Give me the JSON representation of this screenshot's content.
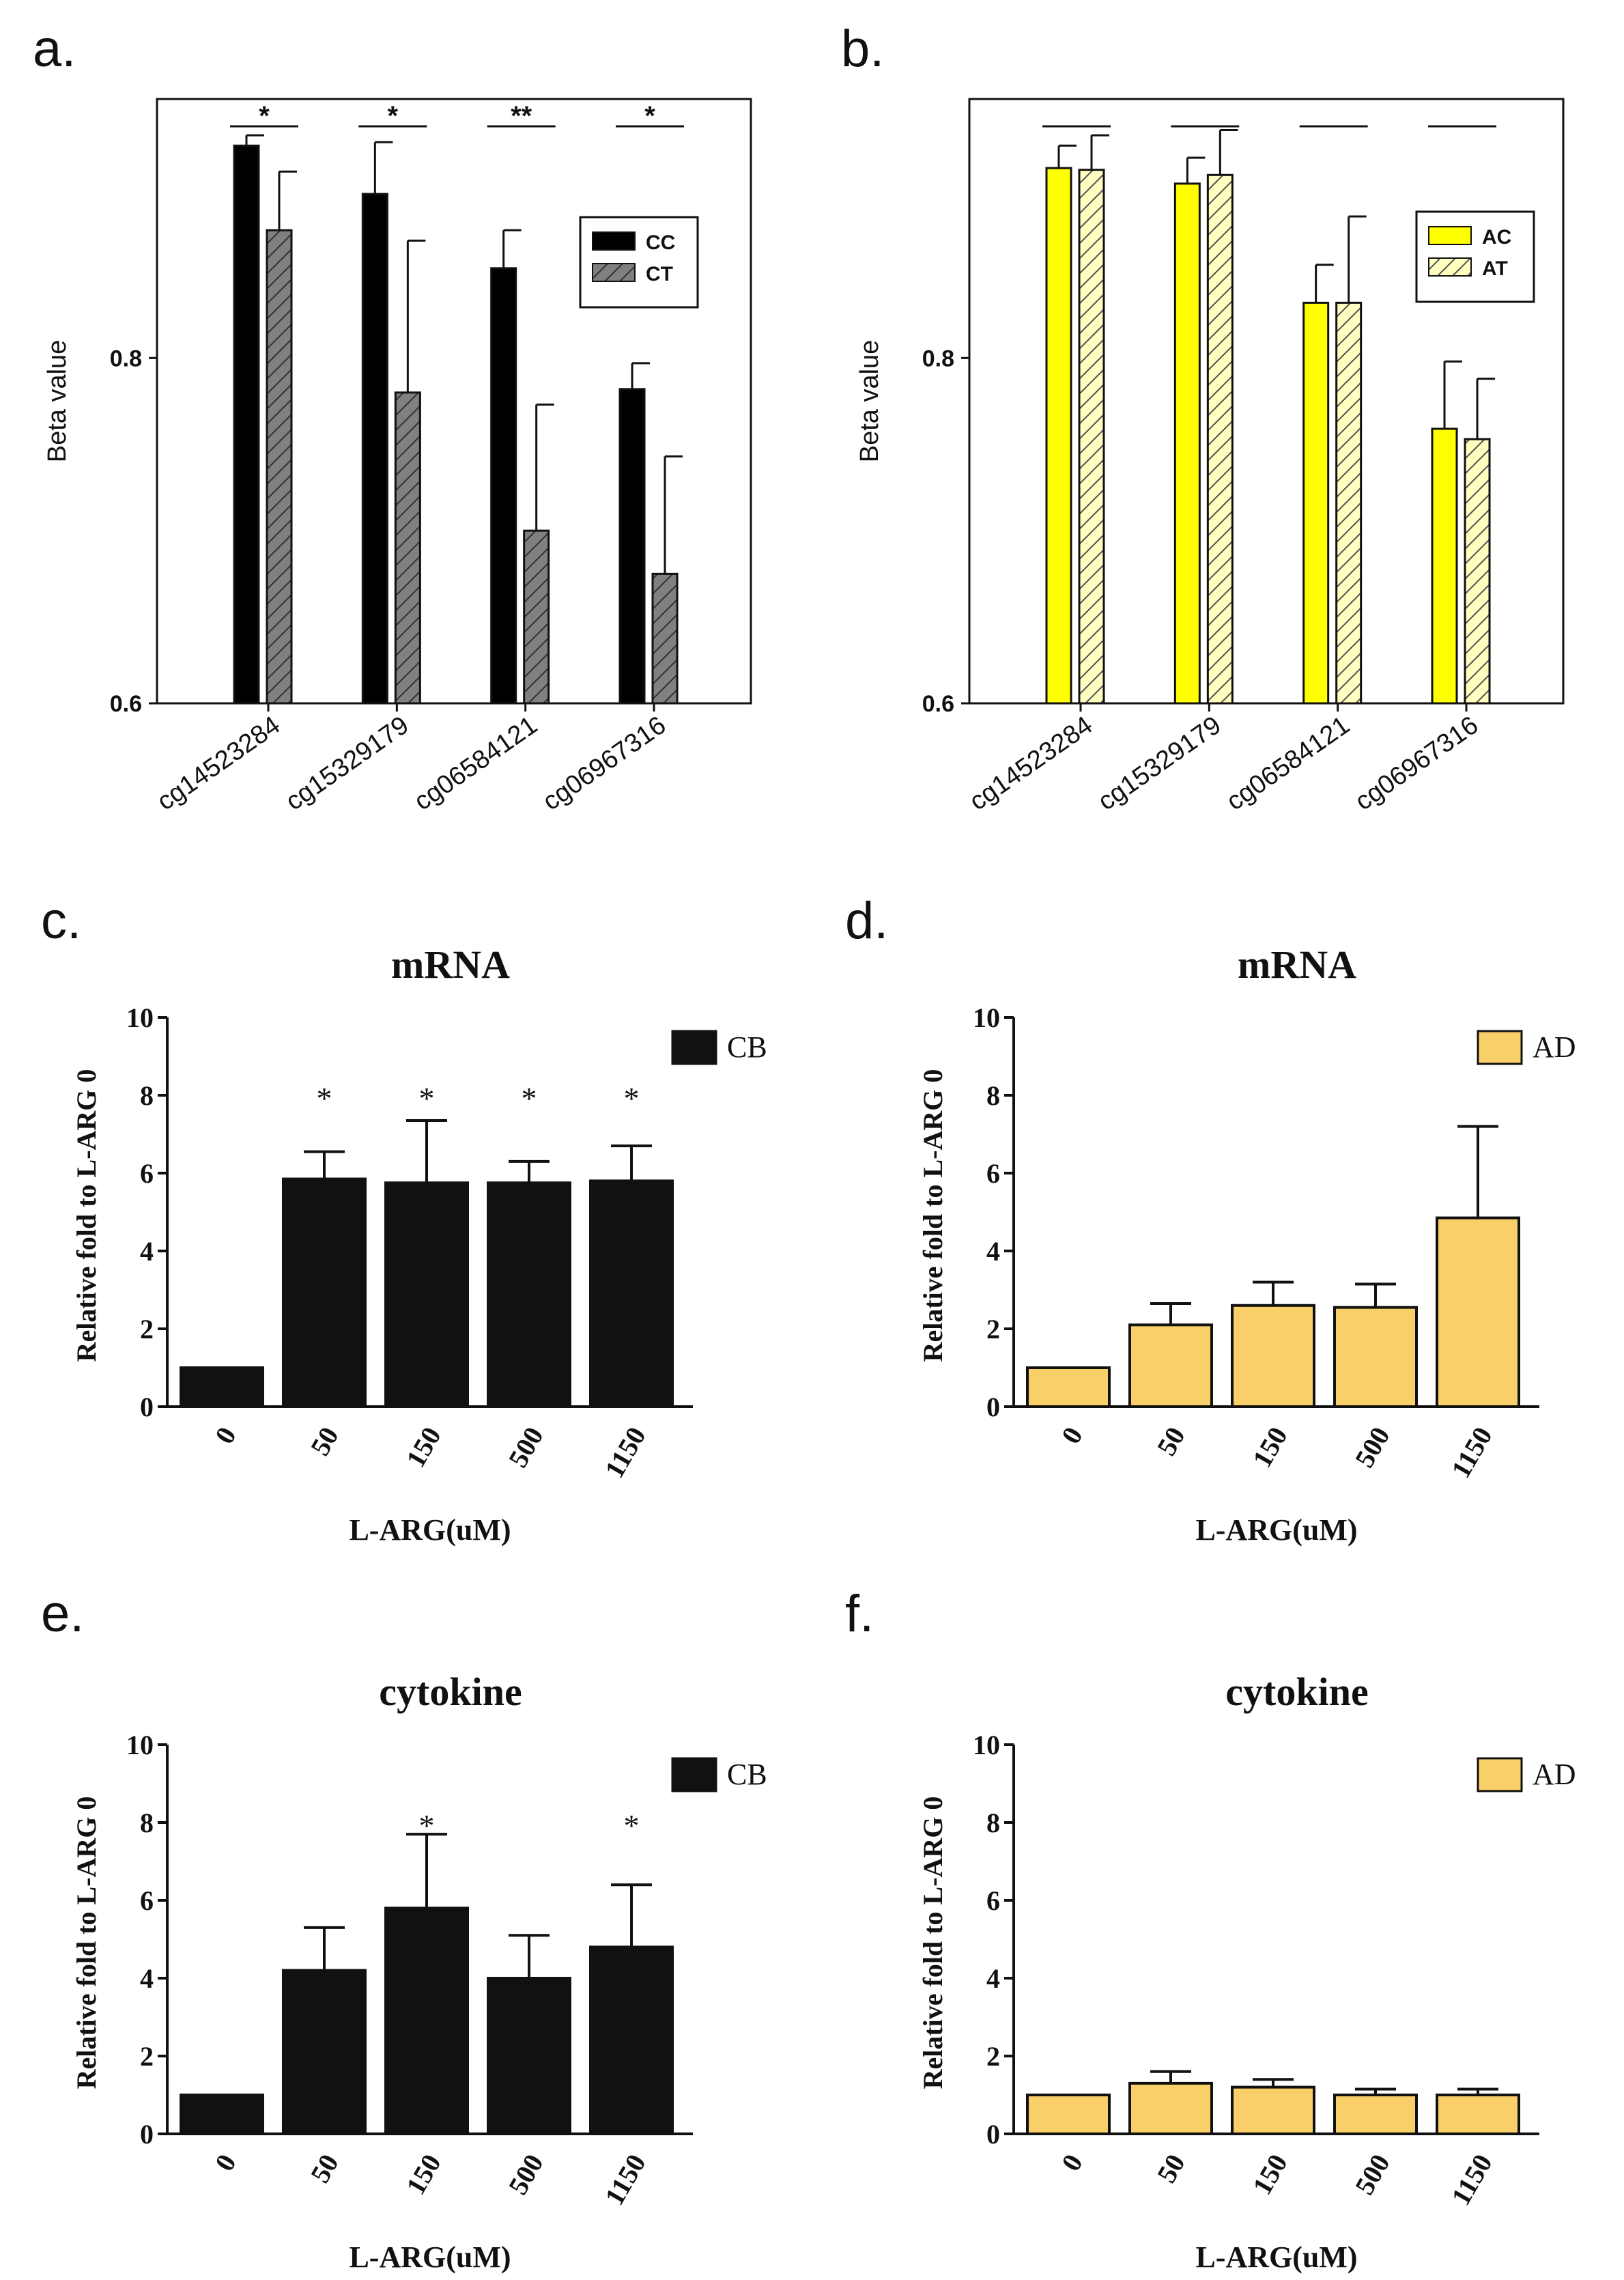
{
  "chart_data": [
    {
      "panel": "a.",
      "type": "bar",
      "ylabel": "Beta value",
      "ylim": [
        0.6,
        0.95
      ],
      "yticks": [
        {
          "v": 0.6,
          "label": "0.6"
        },
        {
          "v": 0.8,
          "label": "0.8"
        }
      ],
      "categories": [
        "cg14523284",
        "cg15329179",
        "cg06584121",
        "cg06967316"
      ],
      "series": [
        {
          "name": "CC",
          "values": [
            0.923,
            0.895,
            0.852,
            0.782
          ],
          "errors": [
            0.006,
            0.03,
            0.022,
            0.015
          ],
          "color": "#000000",
          "hatch": false
        },
        {
          "name": "CT",
          "values": [
            0.874,
            0.78,
            0.7,
            0.675
          ],
          "errors": [
            0.034,
            0.088,
            0.073,
            0.068
          ],
          "color": "#808080",
          "hatch": true
        }
      ],
      "significance": [
        "*",
        "*",
        "**",
        "*"
      ],
      "legend_position": "right"
    },
    {
      "panel": "b.",
      "type": "bar",
      "ylabel": "Beta value",
      "ylim": [
        0.6,
        0.95
      ],
      "yticks": [
        {
          "v": 0.6,
          "label": "0.6"
        },
        {
          "v": 0.8,
          "label": "0.8"
        }
      ],
      "categories": [
        "cg14523284",
        "cg15329179",
        "cg06584121",
        "cg06967316"
      ],
      "series": [
        {
          "name": "AC",
          "values": [
            0.91,
            0.901,
            0.832,
            0.759
          ],
          "errors": [
            0.013,
            0.015,
            0.022,
            0.039
          ],
          "color": "#ffff00",
          "hatch": false
        },
        {
          "name": "AT",
          "values": [
            0.909,
            0.906,
            0.832,
            0.753
          ],
          "errors": [
            0.02,
            0.026,
            0.05,
            0.035
          ],
          "color": "#ffffb0",
          "hatch": true
        }
      ],
      "significance": [
        "",
        "",
        "",
        ""
      ],
      "legend_position": "right"
    },
    {
      "panel": "c.",
      "type": "bar",
      "title": "mRNA",
      "xlabel": "L-ARG(uM)",
      "ylabel": "Relative fold to L-ARG 0",
      "ylim": [
        0,
        10
      ],
      "yticks": [
        {
          "v": 0,
          "label": "0"
        },
        {
          "v": 2,
          "label": "2"
        },
        {
          "v": 4,
          "label": "4"
        },
        {
          "v": 6,
          "label": "6"
        },
        {
          "v": 8,
          "label": "8"
        },
        {
          "v": 10,
          "label": "10"
        }
      ],
      "categories": [
        "0",
        "50",
        "150",
        "500",
        "1150"
      ],
      "series": [
        {
          "name": "CB",
          "values": [
            1,
            5.85,
            5.75,
            5.75,
            5.8
          ],
          "errors": [
            0,
            0.7,
            1.6,
            0.55,
            0.9
          ],
          "color": "#111111"
        }
      ],
      "significance": [
        "",
        "*",
        "*",
        "*",
        "*"
      ],
      "legend_position": "top-right"
    },
    {
      "panel": "d.",
      "type": "bar",
      "title": "mRNA",
      "xlabel": "L-ARG(uM)",
      "ylabel": "Relative fold to L-ARG 0",
      "ylim": [
        0,
        10
      ],
      "yticks": [
        {
          "v": 0,
          "label": "0"
        },
        {
          "v": 2,
          "label": "2"
        },
        {
          "v": 4,
          "label": "4"
        },
        {
          "v": 6,
          "label": "6"
        },
        {
          "v": 8,
          "label": "8"
        },
        {
          "v": 10,
          "label": "10"
        }
      ],
      "categories": [
        "0",
        "50",
        "150",
        "500",
        "1150"
      ],
      "series": [
        {
          "name": "AD",
          "values": [
            1,
            2.1,
            2.6,
            2.55,
            4.85
          ],
          "errors": [
            0,
            0.55,
            0.6,
            0.6,
            2.35
          ],
          "color": "#f9cf6a"
        }
      ],
      "significance": [
        "",
        "",
        "",
        "",
        ""
      ],
      "legend_position": "top-right"
    },
    {
      "panel": "e.",
      "type": "bar",
      "title": "cytokine",
      "xlabel": "L-ARG(uM)",
      "ylabel": "Relative fold to L-ARG 0",
      "ylim": [
        0,
        10
      ],
      "yticks": [
        {
          "v": 0,
          "label": "0"
        },
        {
          "v": 2,
          "label": "2"
        },
        {
          "v": 4,
          "label": "4"
        },
        {
          "v": 6,
          "label": "6"
        },
        {
          "v": 8,
          "label": "8"
        },
        {
          "v": 10,
          "label": "10"
        }
      ],
      "categories": [
        "0",
        "50",
        "150",
        "500",
        "1150"
      ],
      "series": [
        {
          "name": "CB",
          "values": [
            1,
            4.2,
            5.8,
            4.0,
            4.8
          ],
          "errors": [
            0,
            1.1,
            1.9,
            1.1,
            1.6
          ],
          "color": "#111111"
        }
      ],
      "significance": [
        "",
        "",
        "*",
        "",
        "*"
      ],
      "legend_position": "top-right"
    },
    {
      "panel": "f.",
      "type": "bar",
      "title": "cytokine",
      "xlabel": "L-ARG(uM)",
      "ylabel": "Relative fold to L-ARG 0",
      "ylim": [
        0,
        10
      ],
      "yticks": [
        {
          "v": 0,
          "label": "0"
        },
        {
          "v": 2,
          "label": "2"
        },
        {
          "v": 4,
          "label": "4"
        },
        {
          "v": 6,
          "label": "6"
        },
        {
          "v": 8,
          "label": "8"
        },
        {
          "v": 10,
          "label": "10"
        }
      ],
      "categories": [
        "0",
        "50",
        "150",
        "500",
        "1150"
      ],
      "series": [
        {
          "name": "AD",
          "values": [
            1,
            1.3,
            1.2,
            1.0,
            1.0
          ],
          "errors": [
            0,
            0.3,
            0.2,
            0.15,
            0.15
          ],
          "color": "#f9cf6a"
        }
      ],
      "significance": [
        "",
        "",
        "",
        "",
        ""
      ],
      "legend_position": "top-right"
    }
  ]
}
